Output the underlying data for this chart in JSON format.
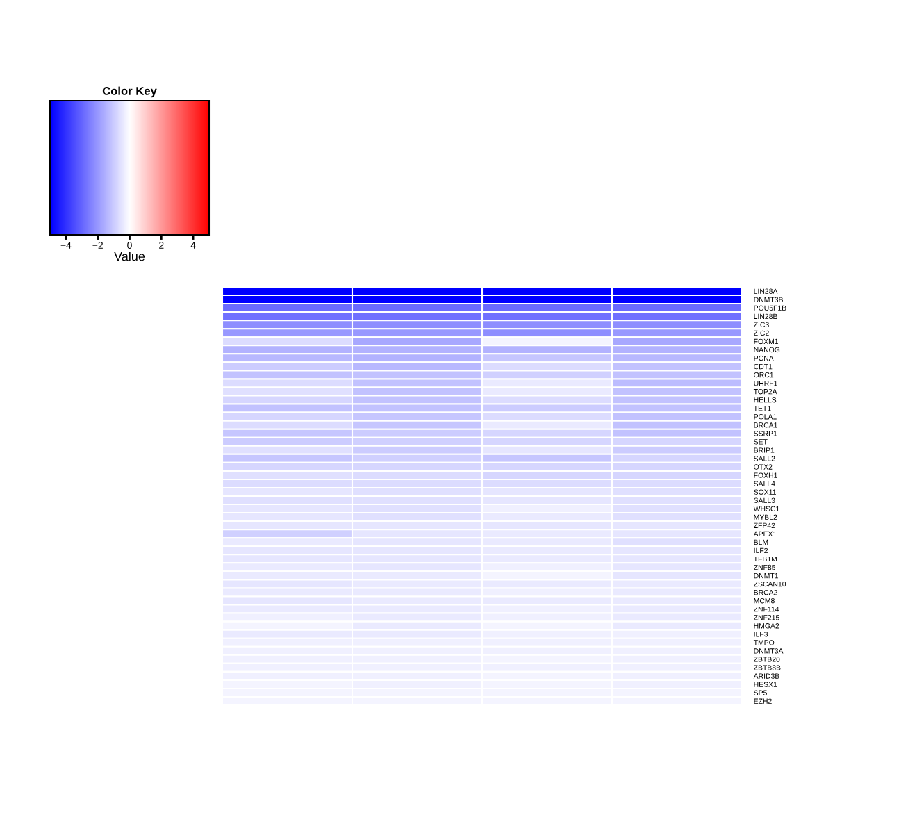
{
  "chart_data": {
    "type": "heatmap",
    "legend_title": "Color Key",
    "clabel": "Value",
    "clim": [
      -5,
      5
    ],
    "cticks": [
      {
        "value": -4,
        "label": "−4"
      },
      {
        "value": -2,
        "label": "−2"
      },
      0,
      2,
      4
    ],
    "categories": [
      null,
      null,
      null,
      null
    ],
    "y_categories": [
      "LIN28A",
      "DNMT3B",
      "POU5F1B",
      "LIN28B",
      "ZIC3",
      "ZIC2",
      "FOXM1",
      "NANOG",
      "PCNA",
      "CDT1",
      "ORC1",
      "UHRF1",
      "TOP2A",
      "HELLS",
      "TET1",
      "POLA1",
      "BRCA1",
      "SSRP1",
      "SET",
      "BRIP1",
      "SALL2",
      "OTX2",
      "FOXH1",
      "SALL4",
      "SOX11",
      "SALL3",
      "WHSC1",
      "MYBL2",
      "ZFP42",
      "APEX1",
      "BLM",
      "ILF2",
      "TFB1M",
      "ZNF85",
      "DNMT1",
      "ZSCAN10",
      "BRCA2",
      "MCM8",
      "ZNF114",
      "ZNF215",
      "HMGA2",
      "ILF3",
      "TMPO",
      "DNMT3A",
      "ZBTB20",
      "ZBTB8B",
      "ARID3B",
      "HESX1",
      "SP5",
      "EZH2"
    ],
    "cells": [
      [
        -5,
        -5,
        -5,
        -5
      ],
      [
        -5,
        -5,
        -5,
        -5
      ],
      [
        -2.9,
        -2.9,
        -2.9,
        -2.9
      ],
      [
        -2.8,
        -2.8,
        -2.8,
        -2.8
      ],
      [
        -2.2,
        -2.2,
        -2.2,
        -2.2
      ],
      [
        -2.0,
        -2.0,
        -2.2,
        -2.0
      ],
      [
        -0.7,
        -1.7,
        -0.2,
        -1.7
      ],
      [
        -1.5,
        -1.5,
        -1.5,
        -1.5
      ],
      [
        -1.4,
        -1.5,
        -1.1,
        -1.4
      ],
      [
        -1.0,
        -1.4,
        -0.7,
        -1.2
      ],
      [
        -1.2,
        -1.2,
        -0.9,
        -1.2
      ],
      [
        -0.7,
        -1.2,
        -0.4,
        -1.3
      ],
      [
        -0.6,
        -1.2,
        -0.4,
        -1.2
      ],
      [
        -0.8,
        -1.2,
        -0.7,
        -1.2
      ],
      [
        -1.2,
        -1.2,
        -1.0,
        -1.2
      ],
      [
        -0.8,
        -1.1,
        -0.7,
        -1.2
      ],
      [
        -0.7,
        -1.1,
        -0.4,
        -1.2
      ],
      [
        -1.1,
        -1.0,
        -0.8,
        -1.2
      ],
      [
        -1.0,
        -0.9,
        -0.8,
        -0.8
      ],
      [
        -0.6,
        -1.0,
        -0.5,
        -1.0
      ],
      [
        -1.1,
        -0.9,
        -1.1,
        -0.8
      ],
      [
        -0.8,
        -0.8,
        -0.8,
        -0.8
      ],
      [
        -0.6,
        -0.7,
        -0.8,
        -0.8
      ],
      [
        -0.7,
        -0.7,
        -0.7,
        -0.7
      ],
      [
        -0.5,
        -0.6,
        -0.5,
        -0.6
      ],
      [
        -0.6,
        -0.6,
        -0.5,
        -0.6
      ],
      [
        -0.5,
        -0.6,
        -0.3,
        -0.6
      ],
      [
        -0.5,
        -0.6,
        -0.4,
        -0.6
      ],
      [
        -0.5,
        -0.5,
        -0.5,
        -0.5
      ],
      [
        -0.9,
        -0.5,
        -0.4,
        -0.5
      ],
      [
        -0.4,
        -0.5,
        -0.4,
        -0.6
      ],
      [
        -0.5,
        -0.5,
        -0.4,
        -0.5
      ],
      [
        -0.5,
        -0.5,
        -0.4,
        -0.5
      ],
      [
        -0.4,
        -0.5,
        -0.3,
        -0.5
      ],
      [
        -0.4,
        -0.4,
        -0.2,
        -0.5
      ],
      [
        -0.5,
        -0.4,
        -0.4,
        -0.4
      ],
      [
        -0.4,
        -0.4,
        -0.3,
        -0.4
      ],
      [
        -0.5,
        -0.4,
        -0.4,
        -0.4
      ],
      [
        -0.4,
        -0.4,
        -0.3,
        -0.4
      ],
      [
        -0.3,
        -0.4,
        -0.3,
        -0.4
      ],
      [
        -0.2,
        -0.4,
        -0.2,
        -0.4
      ],
      [
        -0.4,
        -0.4,
        -0.3,
        -0.3
      ],
      [
        -0.3,
        -0.3,
        -0.3,
        -0.3
      ],
      [
        -0.3,
        -0.3,
        -0.3,
        -0.3
      ],
      [
        -0.3,
        -0.3,
        -0.2,
        -0.3
      ],
      [
        -0.3,
        -0.3,
        -0.3,
        -0.3
      ],
      [
        -0.3,
        -0.3,
        -0.2,
        -0.3
      ],
      [
        -0.2,
        -0.3,
        -0.2,
        -0.3
      ],
      [
        -0.2,
        -0.2,
        -0.2,
        -0.2
      ],
      [
        -0.2,
        -0.2,
        -0.2,
        -0.2
      ]
    ]
  }
}
